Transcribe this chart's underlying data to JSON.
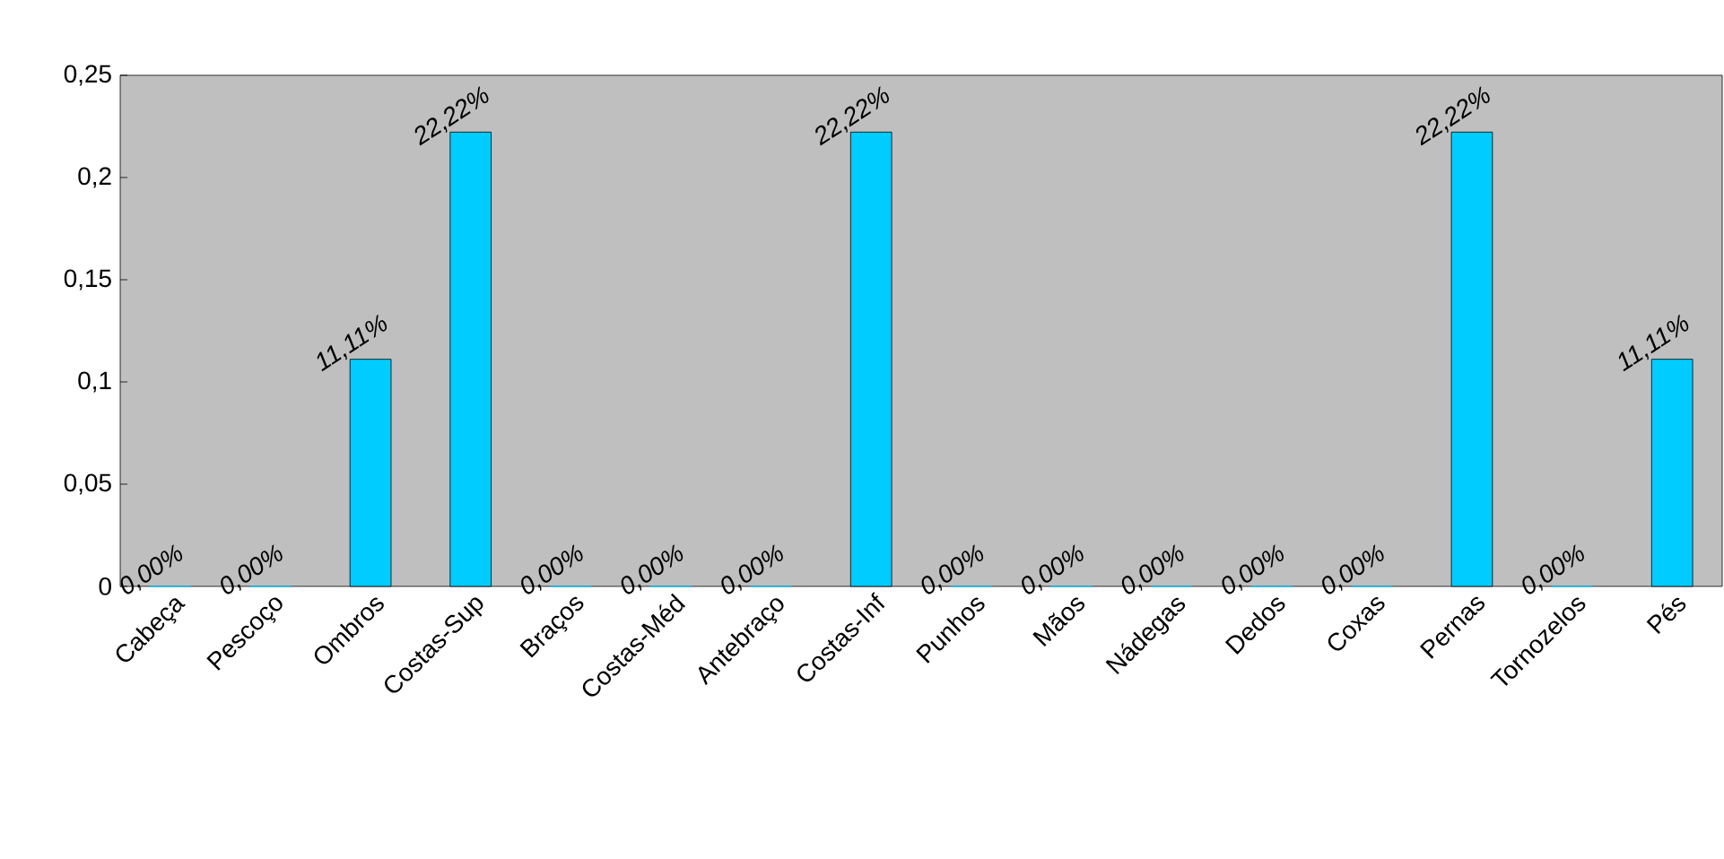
{
  "chart_data": {
    "type": "bar",
    "categories": [
      "Cabeça",
      "Pescoço",
      "Ombros",
      "Costas-Sup",
      "Braços",
      "Costas-Méd",
      "Antebraço",
      "Costas-Inf",
      "Punhos",
      "Mãos",
      "Nádegas",
      "Dedos",
      "Coxas",
      "Pernas",
      "Tornozelos",
      "Pés"
    ],
    "values": [
      0,
      0,
      0.1111,
      0.2222,
      0,
      0,
      0,
      0.2222,
      0,
      0,
      0,
      0,
      0,
      0.2222,
      0,
      0.1111
    ],
    "value_labels": [
      "0,00%",
      "0,00%",
      "11,11%",
      "22,22%",
      "0,00%",
      "0,00%",
      "0,00%",
      "22,22%",
      "0,00%",
      "0,00%",
      "0,00%",
      "0,00%",
      "0,00%",
      "22,22%",
      "0,00%",
      "11,11%"
    ],
    "color": "#00ccff",
    "ylim": [
      0,
      0.25
    ],
    "yticks": [
      {
        "value": 0,
        "label": "0"
      },
      {
        "value": 0.05,
        "label": "0,05"
      },
      {
        "value": 0.1,
        "label": "0,1"
      },
      {
        "value": 0.15,
        "label": "0,15"
      },
      {
        "value": 0.2,
        "label": "0,2"
      },
      {
        "value": 0.25,
        "label": "0,25"
      }
    ],
    "grid": false
  }
}
